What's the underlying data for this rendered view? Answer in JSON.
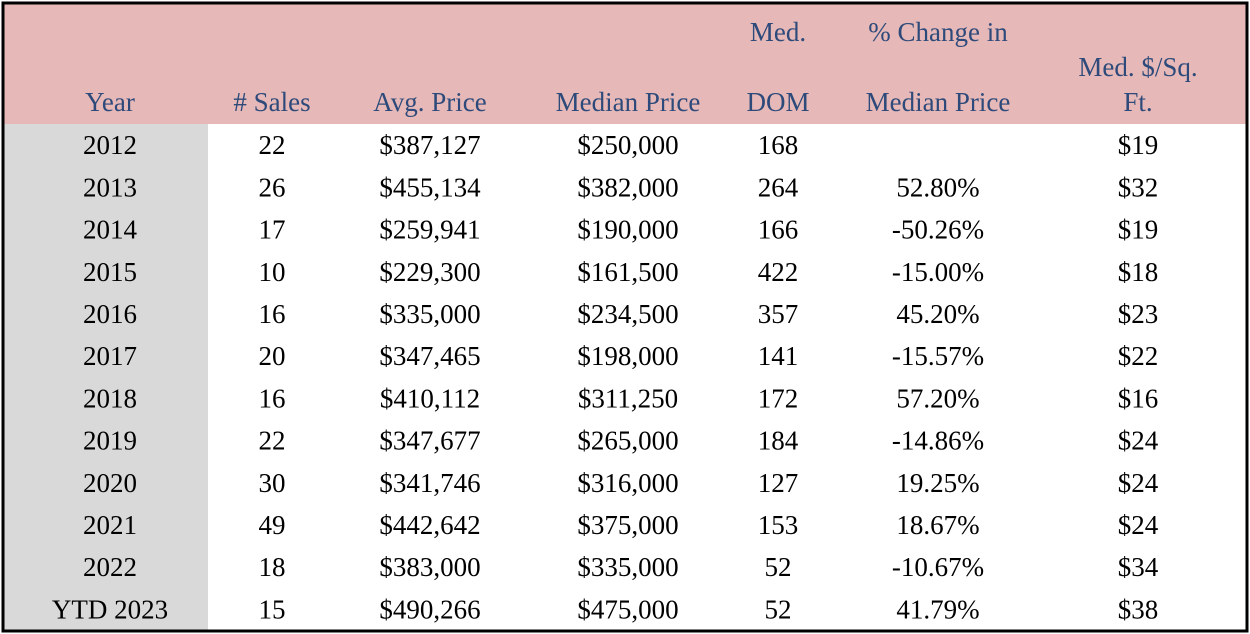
{
  "table": {
    "header": [
      [
        "Year"
      ],
      [
        "# Sales"
      ],
      [
        "Avg. Price"
      ],
      [
        "Median Price"
      ],
      [
        "Med.",
        "DOM"
      ],
      [
        "% Change in",
        "Median Price"
      ],
      [
        "Med. $/Sq.",
        "Ft."
      ]
    ],
    "rows": [
      [
        "2012",
        "22",
        "$387,127",
        "$250,000",
        "168",
        null,
        "$19"
      ],
      [
        "2013",
        "26",
        "$455,134",
        "$382,000",
        "264",
        "52.80%",
        "$32"
      ],
      [
        "2014",
        "17",
        "$259,941",
        "$190,000",
        "166",
        "-50.26%",
        "$19"
      ],
      [
        "2015",
        "10",
        "$229,300",
        "$161,500",
        "422",
        "-15.00%",
        "$18"
      ],
      [
        "2016",
        "16",
        "$335,000",
        "$234,500",
        "357",
        "45.20%",
        "$23"
      ],
      [
        "2017",
        "20",
        "$347,465",
        "$198,000",
        "141",
        "-15.57%",
        "$22"
      ],
      [
        "2018",
        "16",
        "$410,112",
        "$311,250",
        "172",
        "57.20%",
        "$16"
      ],
      [
        "2019",
        "22",
        "$347,677",
        "$265,000",
        "184",
        "-14.86%",
        "$24"
      ],
      [
        "2020",
        "30",
        "$341,746",
        "$316,000",
        "127",
        "19.25%",
        "$24"
      ],
      [
        "2021",
        "49",
        "$442,642",
        "$375,000",
        "153",
        "18.67%",
        "$24"
      ],
      [
        "2022",
        "18",
        "$383,000",
        "$335,000",
        "52",
        "-10.67%",
        "$34"
      ],
      [
        "YTD 2023",
        "15",
        "$490,266",
        "$475,000",
        "52",
        "41.79%",
        "$38"
      ]
    ]
  }
}
